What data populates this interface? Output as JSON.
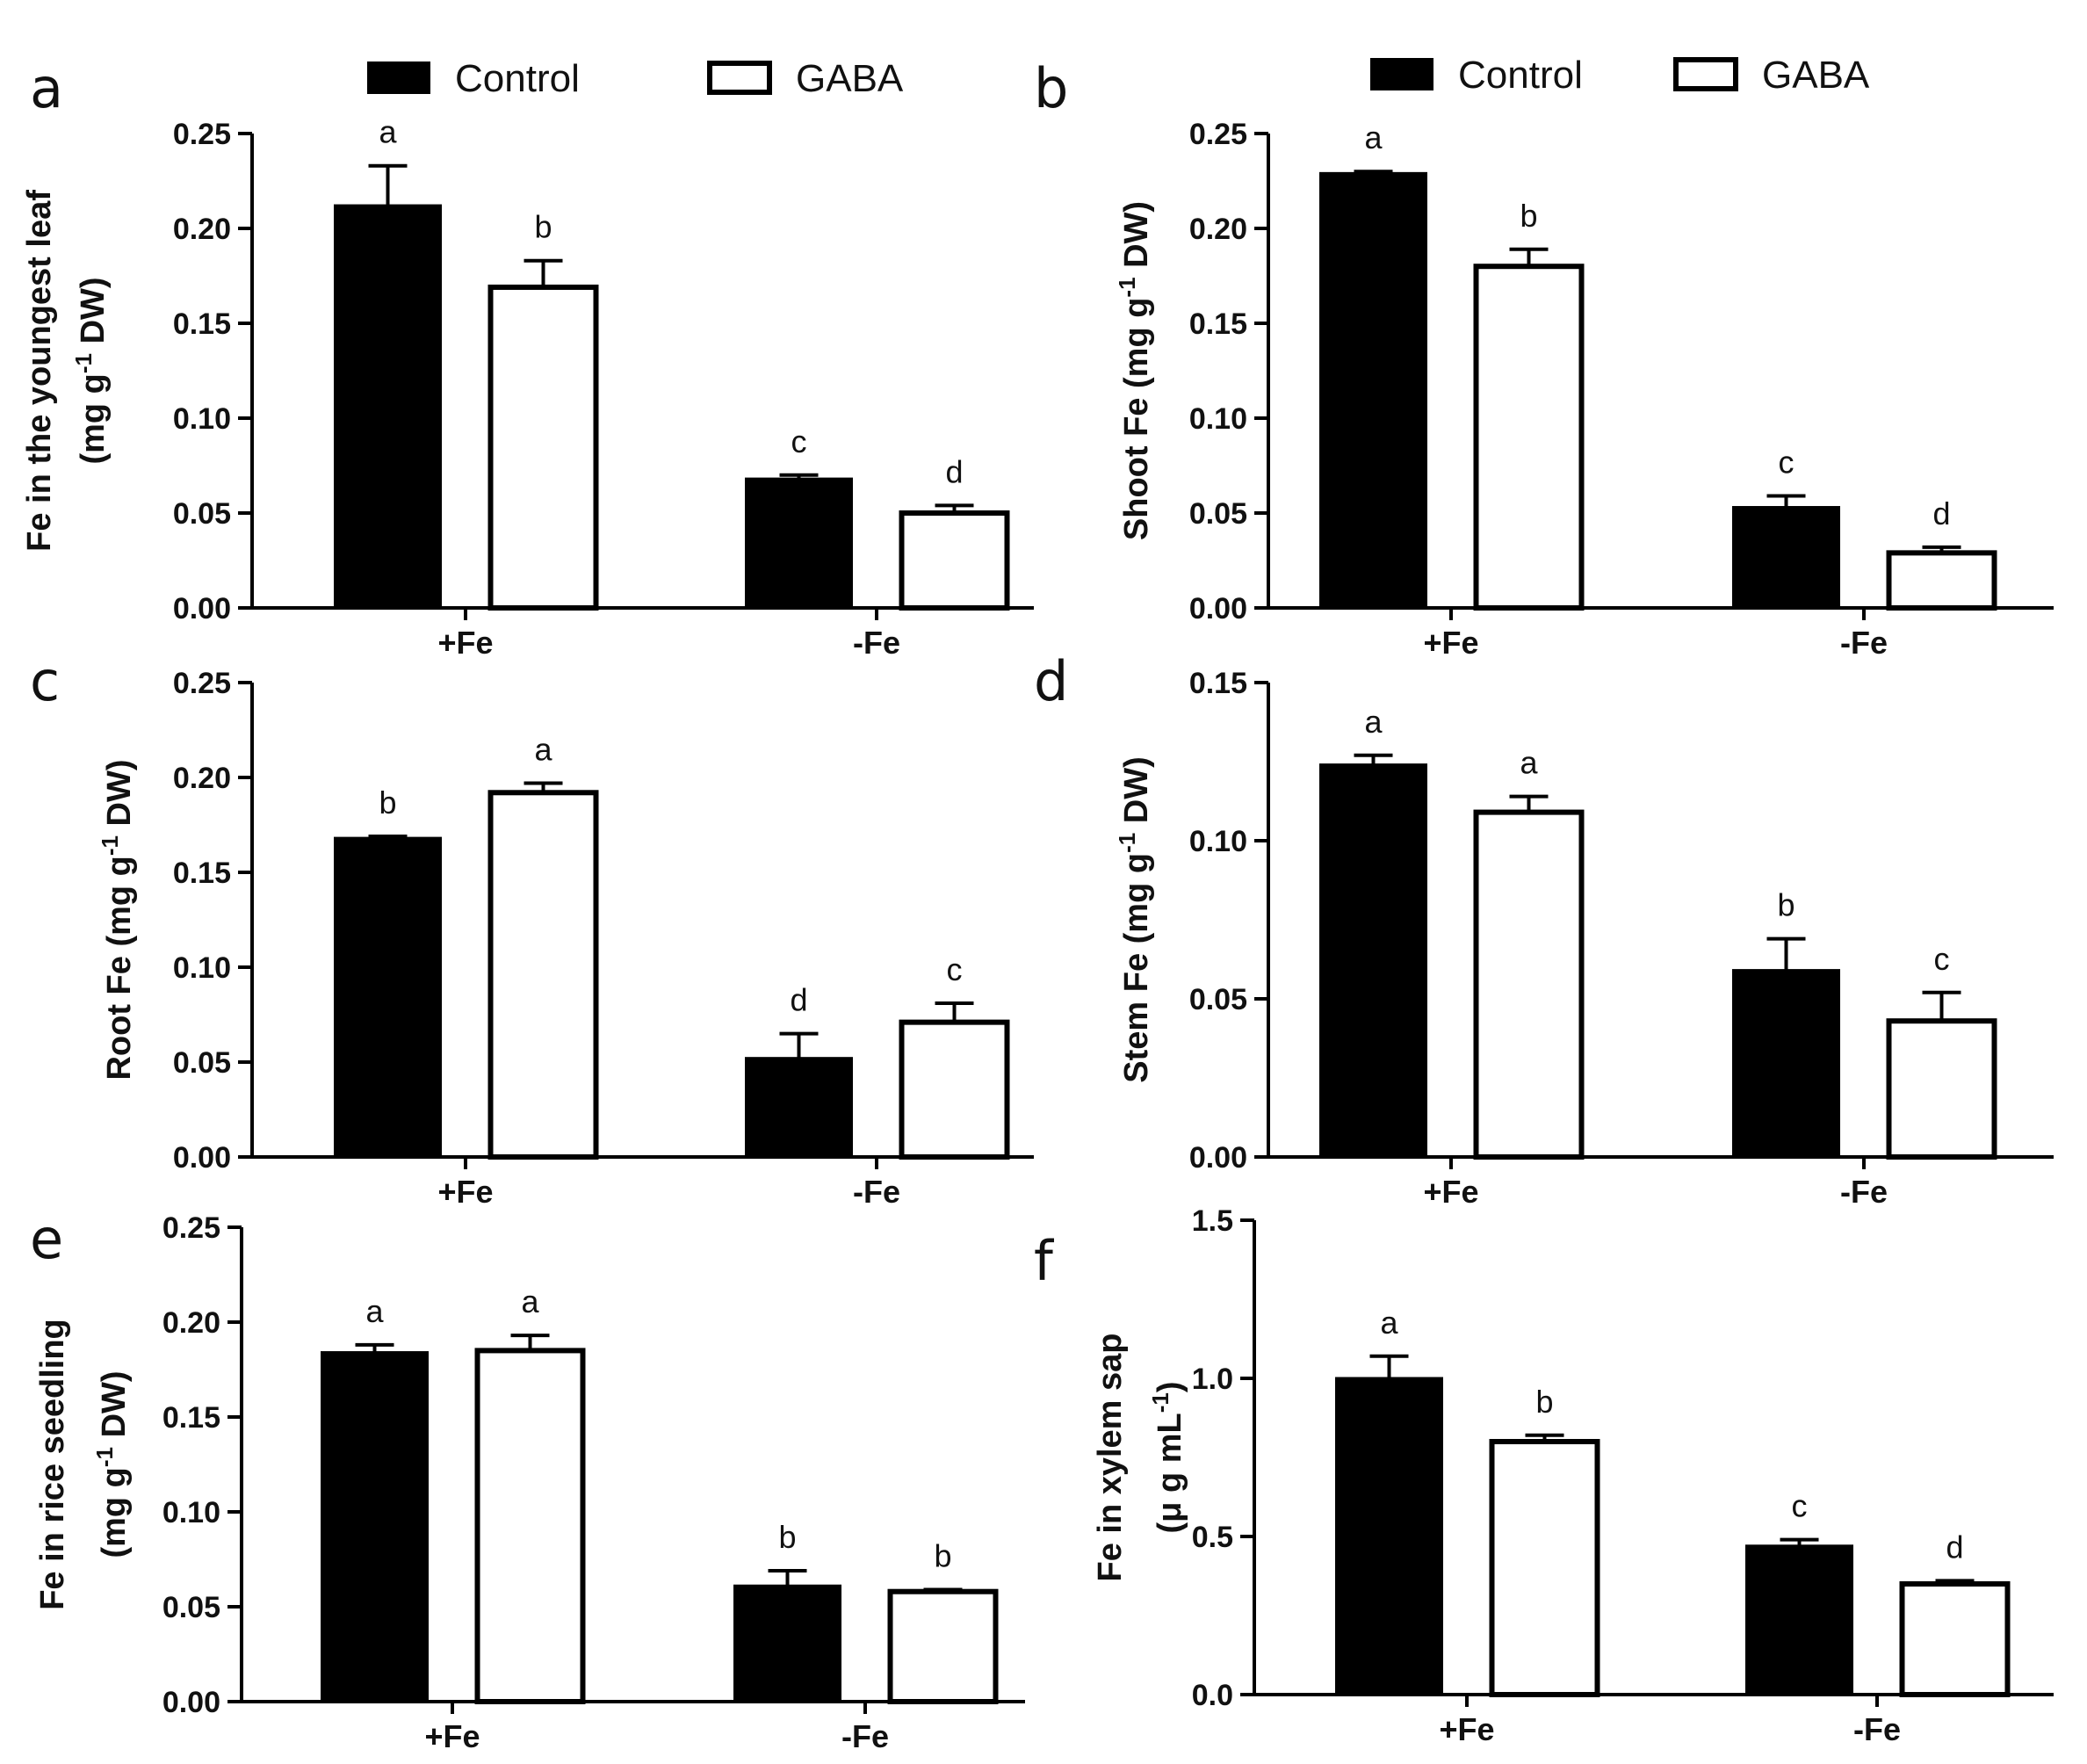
{
  "legend": {
    "control": "Control",
    "gaba": "GABA",
    "control_color": "#000000",
    "gaba_color": "#ffffff"
  },
  "chart_data": [
    {
      "panel": "a",
      "type": "bar",
      "categories": [
        "+Fe",
        "-Fe"
      ],
      "ylabel_lines": [
        "Fe in the youngest leaf",
        "(mg g^-1 DW)"
      ],
      "ylim": [
        0,
        0.25
      ],
      "yticks": [
        0,
        0.05,
        0.1,
        0.15,
        0.2,
        0.25
      ],
      "ytick_labels": [
        "0.00",
        "0.05",
        "0.10",
        "0.15",
        "0.20",
        "0.25"
      ],
      "series": [
        {
          "name": "Control",
          "values": [
            0.212,
            0.068
          ],
          "errors": [
            0.021,
            0.002
          ],
          "letters": [
            "a",
            "c"
          ]
        },
        {
          "name": "GABA",
          "values": [
            0.169,
            0.05
          ],
          "errors": [
            0.014,
            0.004
          ],
          "letters": [
            "b",
            "d"
          ]
        }
      ]
    },
    {
      "panel": "b",
      "type": "bar",
      "categories": [
        "+Fe",
        "-Fe"
      ],
      "ylabel_lines": [
        "Shoot Fe (mg g^-1 DW)"
      ],
      "ylim": [
        0,
        0.25
      ],
      "yticks": [
        0,
        0.05,
        0.1,
        0.15,
        0.2,
        0.25
      ],
      "ytick_labels": [
        "0.00",
        "0.05",
        "0.10",
        "0.15",
        "0.20",
        "0.25"
      ],
      "series": [
        {
          "name": "Control",
          "values": [
            0.229,
            0.053
          ],
          "errors": [
            0.001,
            0.006
          ],
          "letters": [
            "a",
            "c"
          ]
        },
        {
          "name": "GABA",
          "values": [
            0.18,
            0.029
          ],
          "errors": [
            0.009,
            0.003
          ],
          "letters": [
            "b",
            "d"
          ]
        }
      ]
    },
    {
      "panel": "c",
      "type": "bar",
      "categories": [
        "+Fe",
        "-Fe"
      ],
      "ylabel_lines": [
        "Root Fe (mg g^-1 DW)"
      ],
      "ylim": [
        0,
        0.25
      ],
      "yticks": [
        0,
        0.05,
        0.1,
        0.15,
        0.2,
        0.25
      ],
      "ytick_labels": [
        "0.00",
        "0.05",
        "0.10",
        "0.15",
        "0.20",
        "0.25"
      ],
      "series": [
        {
          "name": "Control",
          "values": [
            0.168,
            0.052
          ],
          "errors": [
            0.001,
            0.013
          ],
          "letters": [
            "b",
            "d"
          ]
        },
        {
          "name": "GABA",
          "values": [
            0.192,
            0.071
          ],
          "errors": [
            0.005,
            0.01
          ],
          "letters": [
            "a",
            "c"
          ]
        }
      ]
    },
    {
      "panel": "d",
      "type": "bar",
      "categories": [
        "+Fe",
        "-Fe"
      ],
      "ylabel_lines": [
        "Stem Fe (mg g^-1 DW)"
      ],
      "ylim": [
        0,
        0.15
      ],
      "yticks": [
        0,
        0.05,
        0.1,
        0.15
      ],
      "ytick_labels": [
        "0.00",
        "0.05",
        "0.10",
        "0.15"
      ],
      "series": [
        {
          "name": "Control",
          "values": [
            0.124,
            0.059
          ],
          "errors": [
            0.003,
            0.01
          ],
          "letters": [
            "a",
            "b"
          ]
        },
        {
          "name": "GABA",
          "values": [
            0.109,
            0.043
          ],
          "errors": [
            0.005,
            0.009
          ],
          "letters": [
            "a",
            "c"
          ]
        }
      ]
    },
    {
      "panel": "e",
      "type": "bar",
      "categories": [
        "+Fe",
        "-Fe"
      ],
      "ylabel_lines": [
        "Fe in rice seedling",
        "(mg g^-1 DW)"
      ],
      "ylim": [
        0,
        0.25
      ],
      "yticks": [
        0,
        0.05,
        0.1,
        0.15,
        0.2,
        0.25
      ],
      "ytick_labels": [
        "0.00",
        "0.05",
        "0.10",
        "0.15",
        "0.20",
        "0.25"
      ],
      "series": [
        {
          "name": "Control",
          "values": [
            0.184,
            0.061
          ],
          "errors": [
            0.004,
            0.008
          ],
          "letters": [
            "a",
            "b"
          ]
        },
        {
          "name": "GABA",
          "values": [
            0.185,
            0.058
          ],
          "errors": [
            0.008,
            0.001
          ],
          "letters": [
            "a",
            "b"
          ]
        }
      ]
    },
    {
      "panel": "f",
      "type": "bar",
      "categories": [
        "+Fe",
        "-Fe"
      ],
      "ylabel_lines": [
        "Fe in xylem sap",
        "(μ g mL^-1)"
      ],
      "ylim": [
        0,
        1.5
      ],
      "yticks": [
        0,
        0.5,
        1.0,
        1.5
      ],
      "ytick_labels": [
        "0.0",
        "0.5",
        "1.0",
        "1.5"
      ],
      "series": [
        {
          "name": "Control",
          "values": [
            1.0,
            0.47
          ],
          "errors": [
            0.07,
            0.02
          ],
          "letters": [
            "a",
            "c"
          ]
        },
        {
          "name": "GABA",
          "values": [
            0.8,
            0.35
          ],
          "errors": [
            0.02,
            0.01
          ],
          "letters": [
            "b",
            "d"
          ]
        }
      ]
    }
  ]
}
